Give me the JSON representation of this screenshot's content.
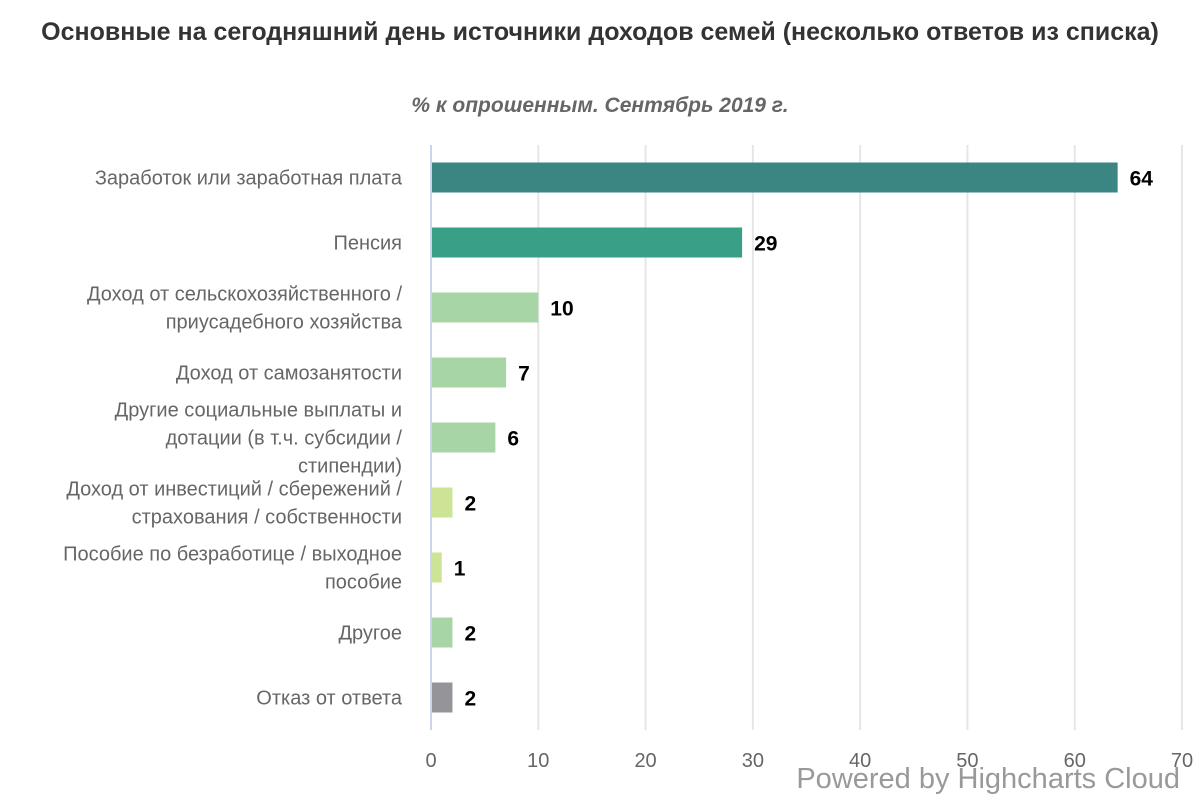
{
  "chart_data": {
    "type": "bar",
    "orientation": "horizontal",
    "title": "Основные на сегодняшний день источники доходов семей (несколько ответов из списка)",
    "subtitle": "% к опрошенным. Сентябрь 2019 г.",
    "categories": [
      "Заработок или заработная плата",
      "Пенсия",
      "Доход от сельскохозяйственного / приусадебного хозяйства",
      "Доход от самозанятости",
      "Другие социальные выплаты и дотации (в т.ч. субсидии / стипендии)",
      "Доход от инвестиций / сбережений / страхования / собственности",
      "Пособие по безработице / выходное пособие",
      "Другое",
      "Отказ от ответа"
    ],
    "category_lines": [
      [
        "Заработок или заработная плата"
      ],
      [
        "Пенсия"
      ],
      [
        "Доход от сельскохозяйственного /",
        "приусадебного хозяйства"
      ],
      [
        "Доход от самозанятости"
      ],
      [
        "Другие социальные выплаты и",
        "дотации (в т.ч. субсидии /",
        "стипендии)"
      ],
      [
        "Доход от инвестиций / сбережений /",
        "страхования / собственности"
      ],
      [
        "Пособие по безработице / выходное",
        "пособие"
      ],
      [
        "Другое"
      ],
      [
        "Отказ от ответа"
      ]
    ],
    "values": [
      64,
      29,
      10,
      7,
      6,
      2,
      1,
      2,
      2
    ],
    "colors": [
      "#3b8583",
      "#3a9f87",
      "#a8d5a5",
      "#a8d5a5",
      "#a8d5a5",
      "#cde396",
      "#cde396",
      "#a8d5a5",
      "#959599"
    ],
    "data_labels": true,
    "xlim": [
      0,
      70
    ],
    "xticks": [
      0,
      10,
      20,
      30,
      40,
      50,
      60,
      70
    ],
    "grid": true,
    "legend": "none"
  },
  "credits": "Powered by Highcharts Cloud"
}
